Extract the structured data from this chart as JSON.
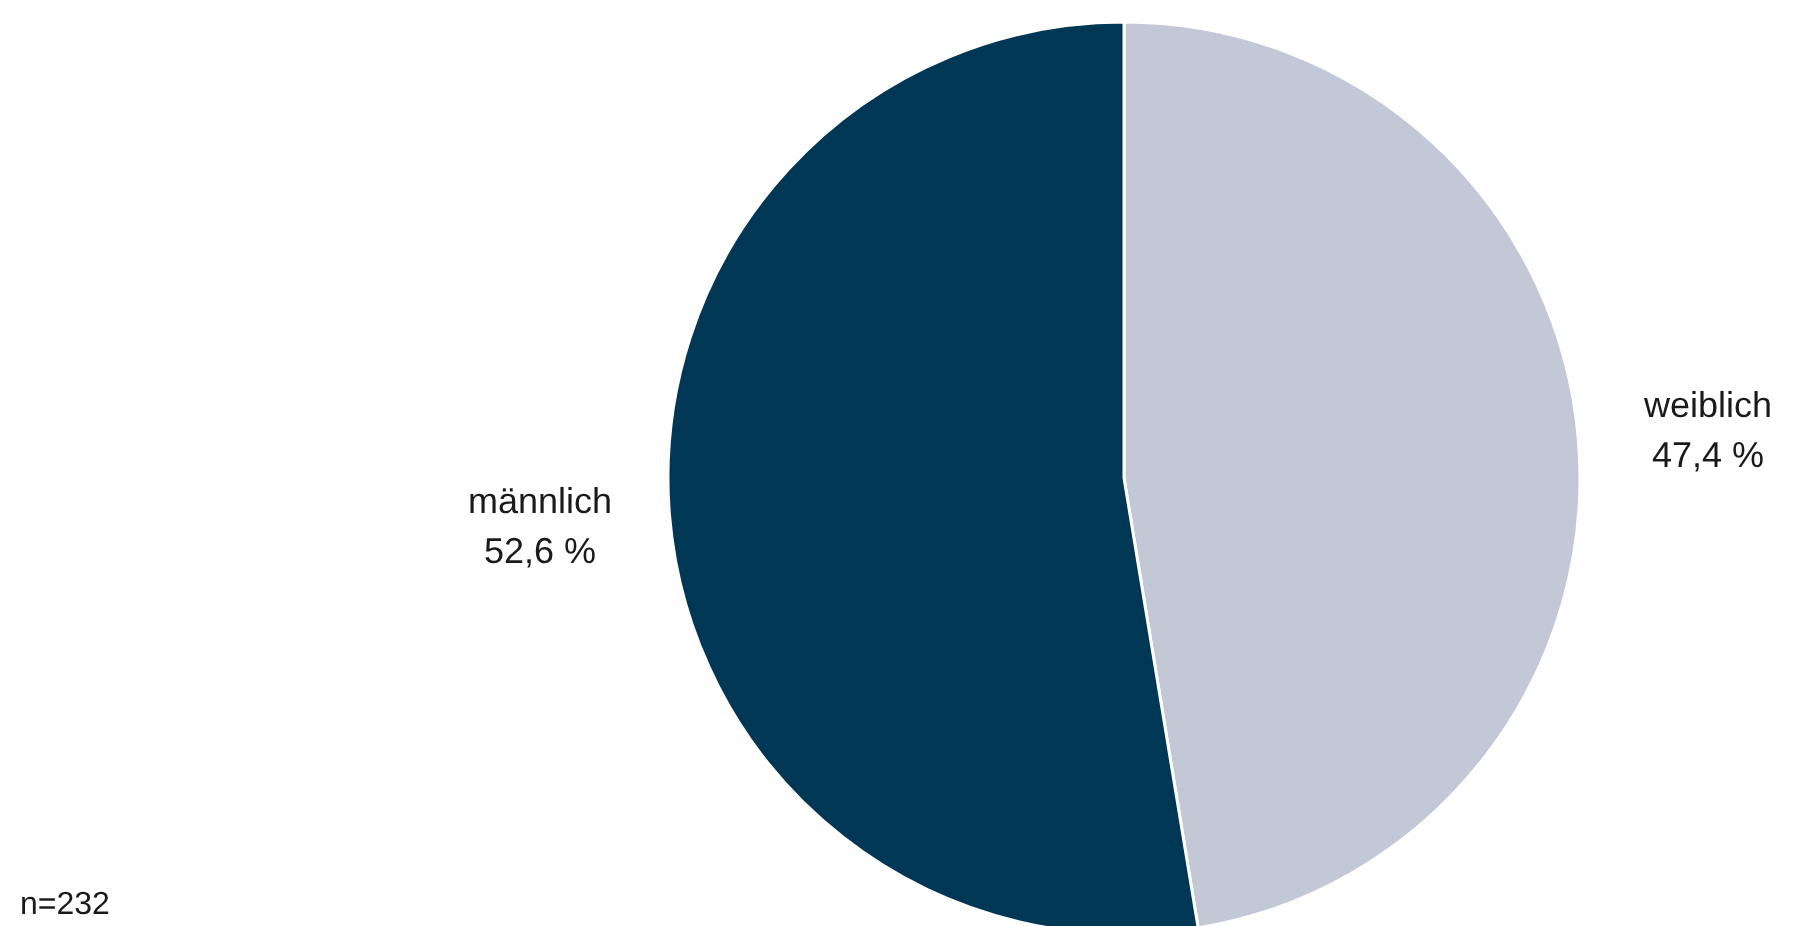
{
  "chart_data": {
    "type": "pie",
    "categories": [
      "weiblich",
      "männlich"
    ],
    "values": [
      47.4,
      52.6
    ],
    "value_labels": [
      "47,4 %",
      "52,6 %"
    ],
    "colors": [
      "#c3c8d6",
      "#003755"
    ],
    "annotations": [
      "n=232"
    ]
  }
}
